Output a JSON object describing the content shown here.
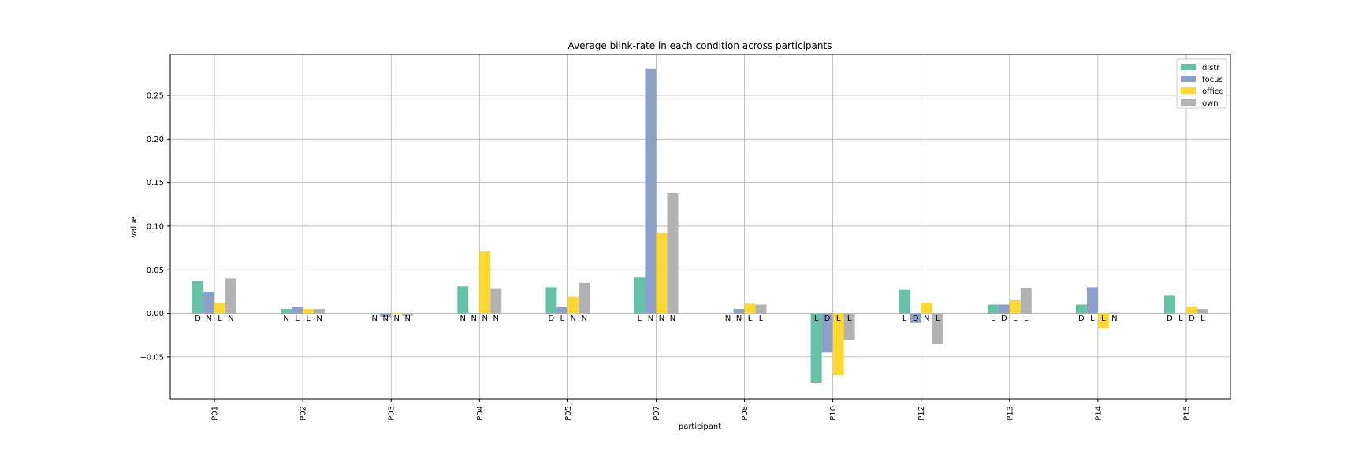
{
  "chart_data": {
    "type": "bar",
    "title": "Average blink-rate in each condition across participants",
    "xlabel": "participant",
    "ylabel": "value",
    "ylim": [
      -0.1,
      0.3
    ],
    "yticks": [
      -0.05,
      0.0,
      0.05,
      0.1,
      0.15,
      0.2,
      0.25
    ],
    "ytick_labels": [
      "−0.05",
      "0.00",
      "0.05",
      "0.10",
      "0.15",
      "0.20",
      "0.25"
    ],
    "grid": true,
    "legend_position": "top-right",
    "categories": [
      "P01",
      "P02",
      "P03",
      "P04",
      "P05",
      "P07",
      "P08",
      "P10",
      "P12",
      "P13",
      "P14",
      "P15"
    ],
    "series": [
      {
        "name": "distr",
        "color": "#66c2a5",
        "values": [
          0.037,
          0.005,
          -0.001,
          0.031,
          0.03,
          0.041,
          0.0,
          -0.08,
          0.027,
          0.01,
          0.01,
          0.021
        ],
        "labels": [
          "D",
          "N",
          "N",
          "N",
          "D",
          "L",
          "N",
          "L",
          "L",
          "L",
          "D",
          "D"
        ]
      },
      {
        "name": "focus",
        "color": "#8da0cb",
        "values": [
          0.025,
          0.007,
          -0.004,
          -0.001,
          0.007,
          0.281,
          0.005,
          -0.045,
          -0.011,
          0.01,
          0.03,
          0.0
        ],
        "labels": [
          "N",
          "L",
          "N",
          "N",
          "L",
          "N",
          "N",
          "D",
          "D",
          "D",
          "L",
          "L"
        ]
      },
      {
        "name": "office",
        "color": "#ffd92f",
        "values": [
          0.012,
          0.005,
          -0.001,
          0.071,
          0.019,
          0.092,
          0.011,
          -0.071,
          0.012,
          0.015,
          -0.017,
          0.008
        ],
        "labels": [
          "L",
          "L",
          "N",
          "N",
          "N",
          "N",
          "L",
          "L",
          "N",
          "L",
          "L",
          "D"
        ]
      },
      {
        "name": "own",
        "color": "#b3b3b3",
        "values": [
          0.04,
          0.005,
          -0.003,
          0.028,
          0.035,
          0.138,
          0.01,
          -0.031,
          -0.035,
          0.029,
          0.001,
          0.005
        ],
        "labels": [
          "N",
          "N",
          "N",
          "N",
          "N",
          "N",
          "L",
          "L",
          "L",
          "L",
          "N",
          "L"
        ]
      }
    ]
  }
}
